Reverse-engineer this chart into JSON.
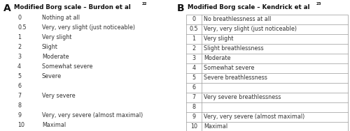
{
  "panel_A_title": "Modified Borg scale – Burdon et al",
  "panel_A_superscript": "22",
  "panel_A_label": "A",
  "panel_A_rows": [
    [
      "0",
      "Nothing at all"
    ],
    [
      "0.5",
      "Very, very slight (just noticeable)"
    ],
    [
      "1",
      "Very slight"
    ],
    [
      "2",
      "Slight"
    ],
    [
      "3",
      "Moderate"
    ],
    [
      "4",
      "Somewhat severe"
    ],
    [
      "5",
      "Severe"
    ],
    [
      "6",
      ""
    ],
    [
      "7",
      "Very severe"
    ],
    [
      "8",
      ""
    ],
    [
      "9",
      "Very, very severe (almost maximal)"
    ],
    [
      "10",
      "Maximal"
    ]
  ],
  "panel_B_title": "Modified Borg scale – Kendrick et al",
  "panel_B_superscript": "23",
  "panel_B_label": "B",
  "panel_B_rows": [
    [
      "0",
      "No breathlessness at all"
    ],
    [
      "0.5",
      "Very, very slight (just noticeable)"
    ],
    [
      "1",
      "Very slight"
    ],
    [
      "2",
      "Slight breathlessness"
    ],
    [
      "3",
      "Moderate"
    ],
    [
      "4",
      "Somewhat severe"
    ],
    [
      "5",
      "Severe breathlessness"
    ],
    [
      "6",
      ""
    ],
    [
      "7",
      "Very severe breathlessness"
    ],
    [
      "8",
      ""
    ],
    [
      "9",
      "Very, very severe (almost maximal)"
    ],
    [
      "10",
      "Maximal"
    ]
  ],
  "bg_color": "#ffffff",
  "border_color": "#999999",
  "title_fontsize": 6.2,
  "body_fontsize": 5.8,
  "label_fontsize": 10,
  "sup_fontsize": 4.0
}
